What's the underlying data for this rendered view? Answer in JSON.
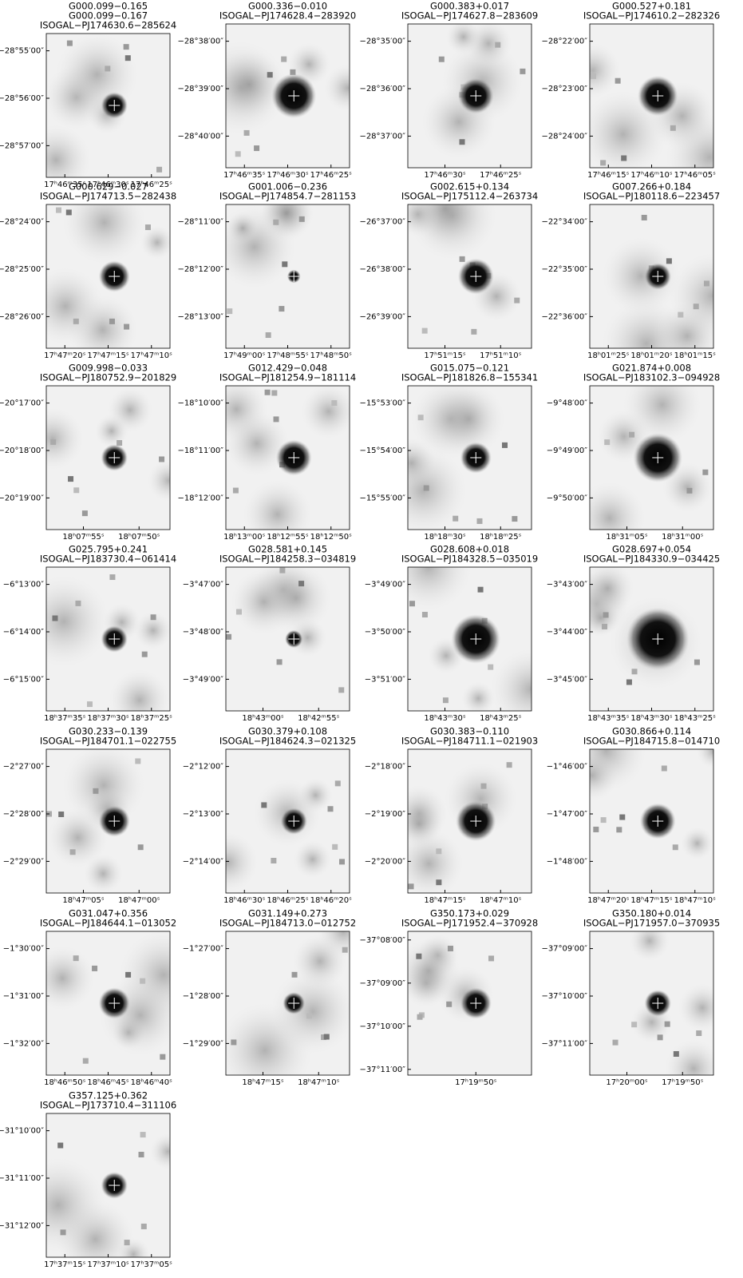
{
  "panels": [
    {
      "title": [
        "G000.099−0.165",
        "G000.099−0.167",
        "ISOGAL−PJ174630.6−285624"
      ],
      "y_labels": [
        "−28°55′00″",
        "−28°56′00″",
        "−28°57′00″"
      ],
      "x_labels": [
        "17ʰ46ᵐ35ˢ",
        "17ʰ46ᵐ30ˢ",
        "17ʰ46ᵐ25ˢ"
      ]
    },
    {
      "title": [
        "G000.336−0.010",
        "ISOGAL−PJ174628.4−283920"
      ],
      "y_labels": [
        "−28°38′00″",
        "−28°39′00″",
        "−28°40′00″"
      ],
      "x_labels": [
        "17ʰ46ᵐ35ˢ",
        "17ʰ46ᵐ30ˢ",
        "17ʰ46ᵐ25ˢ"
      ]
    },
    {
      "title": [
        "G000.383+0.017",
        "ISOGAL−PJ174627.8−283609"
      ],
      "y_labels": [
        "−28°35′00″",
        "−28°36′00″",
        "−28°37′00″"
      ],
      "x_labels": [
        "17ʰ46ᵐ30ˢ",
        "17ʰ46ᵐ25ˢ"
      ]
    },
    {
      "title": [
        "G000.527+0.181",
        "ISOGAL−PJ174610.2−282326"
      ],
      "y_labels": [
        "−28°22′00″",
        "−28°23′00″",
        "−28°24′00″"
      ],
      "x_labels": [
        "17ʰ46ᵐ15ˢ",
        "17ʰ46ᵐ10ˢ",
        "17ʰ46ᵐ05ˢ"
      ]
    },
    {
      "title": [
        "G000.629−0.027",
        "ISOGAL−PJ174713.5−282438"
      ],
      "y_labels": [
        "−28°24′00″",
        "−28°25′00″",
        "−28°26′00″"
      ],
      "x_labels": [
        "17ʰ47ᵐ20ˢ",
        "17ʰ47ᵐ15ˢ",
        "17ʰ47ᵐ10ˢ"
      ]
    },
    {
      "title": [
        "G001.006−0.236",
        "ISOGAL−PJ174854.7−281153"
      ],
      "y_labels": [
        "−28°11′00″",
        "−28°12′00″",
        "−28°13′00″"
      ],
      "x_labels": [
        "17ʰ49ᵐ00ˢ",
        "17ʰ48ᵐ55ˢ",
        "17ʰ48ᵐ50ˢ"
      ]
    },
    {
      "title": [
        "G002.615+0.134",
        "ISOGAL−PJ175112.4−263734"
      ],
      "y_labels": [
        "−26°37′00″",
        "−26°38′00″",
        "−26°39′00″"
      ],
      "x_labels": [
        "17ʰ51ᵐ15ˢ",
        "17ʰ51ᵐ10ˢ"
      ]
    },
    {
      "title": [
        "G007.266+0.184",
        "ISOGAL−PJ180118.6−223457"
      ],
      "y_labels": [
        "−22°34′00″",
        "−22°35′00″",
        "−22°36′00″"
      ],
      "x_labels": [
        "18ʰ01ᵐ25ˢ",
        "18ʰ01ᵐ20ˢ",
        "18ʰ01ᵐ15ˢ"
      ]
    },
    {
      "title": [
        "G009.998−0.033",
        "ISOGAL−PJ180752.9−201829"
      ],
      "y_labels": [
        "−20°17′00″",
        "−20°18′00″",
        "−20°19′00″"
      ],
      "x_labels": [
        "18ʰ07ᵐ55ˢ",
        "18ʰ07ᵐ50ˢ"
      ]
    },
    {
      "title": [
        "G012.429−0.048",
        "ISOGAL−PJ181254.9−181114"
      ],
      "y_labels": [
        "−18°10′00″",
        "−18°11′00″",
        "−18°12′00″"
      ],
      "x_labels": [
        "18ʰ13ᵐ00ˢ",
        "18ʰ12ᵐ55ˢ",
        "18ʰ12ᵐ50ˢ"
      ]
    },
    {
      "title": [
        "G015.075−0.121",
        "ISOGAL−PJ181826.8−155341"
      ],
      "y_labels": [
        "−15°53′00″",
        "−15°54′00″",
        "−15°55′00″"
      ],
      "x_labels": [
        "18ʰ18ᵐ30ˢ",
        "18ʰ18ᵐ25ˢ"
      ]
    },
    {
      "title": [
        "G021.874+0.008",
        "ISOGAL−PJ183102.3−094928"
      ],
      "y_labels": [
        "−9°48′00″",
        "−9°49′00″",
        "−9°50′00″"
      ],
      "x_labels": [
        "18ʰ31ᵐ05ˢ",
        "18ʰ31ᵐ00ˢ"
      ]
    },
    {
      "title": [
        "G025.795+0.241",
        "ISOGAL−PJ183730.4−061414"
      ],
      "y_labels": [
        "−6°13′00″",
        "−6°14′00″",
        "−6°15′00″"
      ],
      "x_labels": [
        "18ʰ37ᵐ35ˢ",
        "18ʰ37ᵐ30ˢ",
        "18ʰ37ᵐ25ˢ"
      ]
    },
    {
      "title": [
        "G028.581+0.145",
        "ISOGAL−PJ184258.3−034819"
      ],
      "y_labels": [
        "−3°47′00″",
        "−3°48′00″",
        "−3°49′00″"
      ],
      "x_labels": [
        "18ʰ43ᵐ00ˢ",
        "18ʰ42ᵐ55ˢ"
      ]
    },
    {
      "title": [
        "G028.608+0.018",
        "ISOGAL−PJ184328.5−035019"
      ],
      "y_labels": [
        "−3°49′00″",
        "−3°50′00″",
        "−3°51′00″"
      ],
      "x_labels": [
        "18ʰ43ᵐ30ˢ",
        "18ʰ43ᵐ25ˢ"
      ]
    },
    {
      "title": [
        "G028.697+0.054",
        "ISOGAL−PJ184330.9−034425"
      ],
      "y_labels": [
        "−3°43′00″",
        "−3°44′00″",
        "−3°45′00″"
      ],
      "x_labels": [
        "18ʰ43ᵐ35ˢ",
        "18ʰ43ᵐ30ˢ",
        "18ʰ43ᵐ25ˢ"
      ]
    },
    {
      "title": [
        "G030.233−0.139",
        "ISOGAL−PJ184701.1−022755"
      ],
      "y_labels": [
        "−2°27′00″",
        "−2°28′00″",
        "−2°29′00″"
      ],
      "x_labels": [
        "18ʰ47ᵐ05ˢ",
        "18ʰ47ᵐ00ˢ"
      ]
    },
    {
      "title": [
        "G030.379+0.108",
        "ISOGAL−PJ184624.3−021325"
      ],
      "y_labels": [
        "−2°12′00″",
        "−2°13′00″",
        "−2°14′00″"
      ],
      "x_labels": [
        "18ʰ46ᵐ30ˢ",
        "18ʰ46ᵐ25ˢ",
        "18ʰ46ᵐ20ˢ"
      ]
    },
    {
      "title": [
        "G030.383−0.110",
        "ISOGAL−PJ184711.1−021903"
      ],
      "y_labels": [
        "−2°18′00″",
        "−2°19′00″",
        "−2°20′00″"
      ],
      "x_labels": [
        "18ʰ47ᵐ15ˢ",
        "18ʰ47ᵐ10ˢ"
      ]
    },
    {
      "title": [
        "G030.866+0.114",
        "ISOGAL−PJ184715.8−014710"
      ],
      "y_labels": [
        "−1°46′00″",
        "−1°47′00″",
        "−1°48′00″"
      ],
      "x_labels": [
        "18ʰ47ᵐ20ˢ",
        "18ʰ47ᵐ15ˢ",
        "18ʰ47ᵐ10ˢ"
      ]
    },
    {
      "title": [
        "G031.047+0.356",
        "ISOGAL−PJ184644.1−013052"
      ],
      "y_labels": [
        "−1°30′00″",
        "−1°31′00″",
        "−1°32′00″"
      ],
      "x_labels": [
        "18ʰ46ᵐ50ˢ",
        "18ʰ46ᵐ45ˢ",
        "18ʰ46ᵐ40ˢ"
      ]
    },
    {
      "title": [
        "G031.149+0.273",
        "ISOGAL−PJ184713.0−012752"
      ],
      "y_labels": [
        "−1°27′00″",
        "−1°28′00″",
        "−1°29′00″"
      ],
      "x_labels": [
        "18ʰ47ᵐ15ˢ",
        "18ʰ47ᵐ10ˢ"
      ]
    },
    {
      "title": [
        "G350.173+0.029",
        "ISOGAL−PJ171952.4−370928"
      ],
      "y_labels": [
        "−37°08′00″",
        "−37°09′00″",
        "−37°10′00″",
        "−37°11′00″"
      ],
      "x_labels": [
        "17ʰ19ᵐ50ˢ"
      ]
    },
    {
      "title": [
        "G350.180+0.014",
        "ISOGAL−PJ171957.0−370935"
      ],
      "y_labels": [
        "−37°09′00″",
        "−37°10′00″",
        "−37°11′00″"
      ],
      "x_labels": [
        "17ʰ20ᵐ00ˢ",
        "17ʰ19ᵐ50ˢ"
      ]
    },
    {
      "title": [
        "G357.125+0.362",
        "ISOGAL−PJ173710.4−311106"
      ],
      "y_labels": [
        "−31°10′00″",
        "−31°11′00″",
        "−31°12′00″"
      ],
      "x_labels": [
        "17ʰ37ᵐ15ˢ",
        "17ʰ37ᵐ10ˢ",
        "17ʰ37ᵐ05ˢ"
      ]
    }
  ]
}
